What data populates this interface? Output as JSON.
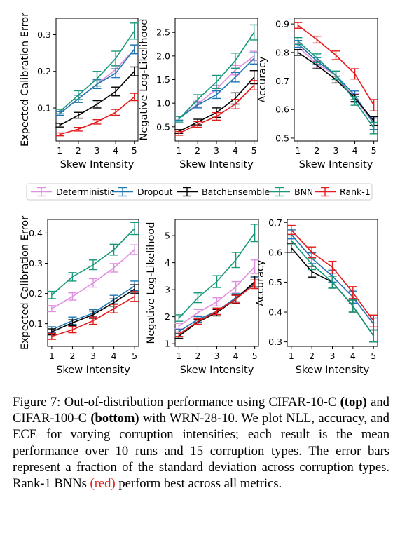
{
  "colors": {
    "Deterministic": "#e08ee0",
    "Dropout": "#1f77b4",
    "BatchEnsemble": "#000000",
    "BNN": "#17987a",
    "Rank-1": "#e41a1c"
  },
  "legend": [
    "Deterministic",
    "Dropout",
    "BatchEnsemble",
    "BNN",
    "Rank-1"
  ],
  "caption": {
    "label": "Figure 7:",
    "text1": "Out-of-distribution performance using CIFAR-10-C",
    "top": "(top)",
    "text2": "and CIFAR-100-C",
    "bottom": "(bottom)",
    "text3": "with WRN-28-10. We plot NLL, accuracy, and ECE for varying corruption intensities; each result is the mean performance over 10 runs and 15 corruption types. The error bars represent a fraction of the standard deviation across corruption types. Rank-1 BNNs",
    "red": "(red)",
    "text4": "perform best across all metrics."
  },
  "chart_data": [
    {
      "type": "line",
      "xlabel": "Skew Intensity",
      "ylabel": "Expected Calibration Error",
      "x": [
        1,
        2,
        3,
        4,
        5
      ],
      "xticks": [
        "1",
        "2",
        "3",
        "4",
        "5"
      ],
      "ylim": [
        0.01,
        0.345
      ],
      "yticks": [
        0.1,
        0.2,
        0.3
      ],
      "ytick_labels": [
        "0.1",
        "0.2",
        "0.3"
      ],
      "series": [
        {
          "name": "Deterministic",
          "values": [
            0.085,
            0.125,
            0.165,
            0.205,
            0.26
          ],
          "err": [
            0.005,
            0.01,
            0.012,
            0.012,
            0.012
          ]
        },
        {
          "name": "Dropout",
          "values": [
            0.085,
            0.125,
            0.165,
            0.195,
            0.26
          ],
          "err": [
            0.005,
            0.01,
            0.012,
            0.012,
            0.012
          ]
        },
        {
          "name": "BatchEnsemble",
          "values": [
            0.053,
            0.08,
            0.11,
            0.145,
            0.2
          ],
          "err": [
            0.005,
            0.008,
            0.01,
            0.012,
            0.012
          ]
        },
        {
          "name": "BNN",
          "values": [
            0.09,
            0.135,
            0.18,
            0.235,
            0.31
          ],
          "err": [
            0.006,
            0.012,
            0.02,
            0.02,
            0.022
          ]
        },
        {
          "name": "Rank-1",
          "values": [
            0.028,
            0.042,
            0.062,
            0.088,
            0.13
          ],
          "err": [
            0.004,
            0.005,
            0.006,
            0.008,
            0.01
          ]
        }
      ]
    },
    {
      "type": "line",
      "xlabel": "Skew Intensity",
      "ylabel": "Negative Log-Likelihood",
      "x": [
        1,
        2,
        3,
        4,
        5
      ],
      "xticks": [
        "1",
        "2",
        "3",
        "4",
        "5"
      ],
      "ylim": [
        0.2,
        2.8
      ],
      "yticks": [
        0.5,
        1.0,
        1.5,
        2.0,
        2.5
      ],
      "ytick_labels": [
        "0.5",
        "1.0",
        "1.5",
        "2.0",
        "2.5"
      ],
      "series": [
        {
          "name": "Deterministic",
          "values": [
            0.68,
            0.98,
            1.3,
            1.7,
            2.0
          ],
          "err": [
            0.04,
            0.06,
            0.08,
            0.1,
            0.1
          ]
        },
        {
          "name": "Dropout",
          "values": [
            0.68,
            0.96,
            1.18,
            1.55,
            1.95
          ],
          "err": [
            0.04,
            0.06,
            0.08,
            0.1,
            0.12
          ]
        },
        {
          "name": "BatchEnsemble",
          "values": [
            0.4,
            0.6,
            0.8,
            1.1,
            1.55
          ],
          "err": [
            0.04,
            0.06,
            0.1,
            0.12,
            0.14
          ]
        },
        {
          "name": "BNN",
          "values": [
            0.66,
            1.08,
            1.45,
            1.9,
            2.5
          ],
          "err": [
            0.06,
            0.1,
            0.14,
            0.16,
            0.16
          ]
        },
        {
          "name": "Rank-1",
          "values": [
            0.36,
            0.55,
            0.72,
            0.98,
            1.38
          ],
          "err": [
            0.04,
            0.06,
            0.08,
            0.1,
            0.1
          ]
        }
      ]
    },
    {
      "type": "line",
      "xlabel": "Skew Intensity",
      "ylabel": "Accuracy",
      "x": [
        1,
        2,
        3,
        4,
        5
      ],
      "xticks": [
        "1",
        "2",
        "3",
        "4",
        "5"
      ],
      "ylim": [
        0.49,
        0.92
      ],
      "yticks": [
        0.5,
        0.6,
        0.7,
        0.8,
        0.9
      ],
      "ytick_labels": [
        "0.5",
        "0.6",
        "0.7",
        "0.8",
        "0.9"
      ],
      "series": [
        {
          "name": "Deterministic",
          "values": [
            0.82,
            0.76,
            0.72,
            0.64,
            0.55
          ],
          "err": [
            0.01,
            0.012,
            0.014,
            0.015,
            0.02
          ]
        },
        {
          "name": "Dropout",
          "values": [
            0.83,
            0.77,
            0.72,
            0.65,
            0.55
          ],
          "err": [
            0.012,
            0.012,
            0.014,
            0.015,
            0.02
          ]
        },
        {
          "name": "BatchEnsemble",
          "values": [
            0.8,
            0.755,
            0.705,
            0.64,
            0.56
          ],
          "err": [
            0.01,
            0.012,
            0.012,
            0.012,
            0.015
          ]
        },
        {
          "name": "BNN",
          "values": [
            0.84,
            0.78,
            0.72,
            0.63,
            0.535
          ],
          "err": [
            0.012,
            0.015,
            0.015,
            0.015,
            0.02
          ]
        },
        {
          "name": "Rank-1",
          "values": [
            0.895,
            0.845,
            0.79,
            0.725,
            0.615
          ],
          "err": [
            0.01,
            0.012,
            0.015,
            0.018,
            0.02
          ]
        }
      ]
    },
    {
      "type": "line",
      "xlabel": "Skew Intensity",
      "ylabel": "Expected Calibration Error",
      "x": [
        1,
        2,
        3,
        4,
        5
      ],
      "xticks": [
        "1",
        "2",
        "3",
        "4",
        "5"
      ],
      "ylim": [
        0.025,
        0.445
      ],
      "yticks": [
        0.1,
        0.2,
        0.3,
        0.4
      ],
      "ytick_labels": [
        "0.1",
        "0.2",
        "0.3",
        "0.4"
      ],
      "series": [
        {
          "name": "Deterministic",
          "values": [
            0.15,
            0.19,
            0.235,
            0.285,
            0.345
          ],
          "err": [
            0.01,
            0.012,
            0.014,
            0.014,
            0.016
          ]
        },
        {
          "name": "Dropout",
          "values": [
            0.08,
            0.11,
            0.135,
            0.18,
            0.225
          ],
          "err": [
            0.01,
            0.012,
            0.012,
            0.014,
            0.016
          ]
        },
        {
          "name": "BatchEnsemble",
          "values": [
            0.073,
            0.103,
            0.13,
            0.17,
            0.215
          ],
          "err": [
            0.01,
            0.01,
            0.012,
            0.012,
            0.014
          ]
        },
        {
          "name": "BNN",
          "values": [
            0.195,
            0.255,
            0.295,
            0.345,
            0.415
          ],
          "err": [
            0.012,
            0.014,
            0.016,
            0.018,
            0.02
          ]
        },
        {
          "name": "Rank-1",
          "values": [
            0.058,
            0.08,
            0.11,
            0.15,
            0.19
          ],
          "err": [
            0.01,
            0.01,
            0.012,
            0.014,
            0.016
          ]
        }
      ]
    },
    {
      "type": "line",
      "xlabel": "Skew Intensity",
      "ylabel": "Negative Log-Likelihood",
      "x": [
        1,
        2,
        3,
        4,
        5
      ],
      "xticks": [
        "1",
        "2",
        "3",
        "4",
        "5"
      ],
      "ylim": [
        0.9,
        5.6
      ],
      "yticks": [
        1,
        2,
        3,
        4,
        5
      ],
      "ytick_labels": [
        "1",
        "2",
        "3",
        "4",
        "5"
      ],
      "series": [
        {
          "name": "Deterministic",
          "values": [
            1.65,
            2.15,
            2.55,
            3.1,
            3.85
          ],
          "err": [
            0.1,
            0.12,
            0.15,
            0.2,
            0.25
          ]
        },
        {
          "name": "Dropout",
          "values": [
            1.45,
            1.9,
            2.2,
            2.7,
            3.25
          ],
          "err": [
            0.08,
            0.1,
            0.12,
            0.15,
            0.2
          ]
        },
        {
          "name": "BatchEnsemble",
          "values": [
            1.28,
            1.8,
            2.15,
            2.65,
            3.3
          ],
          "err": [
            0.08,
            0.1,
            0.12,
            0.15,
            0.2
          ]
        },
        {
          "name": "BNN",
          "values": [
            1.95,
            2.7,
            3.3,
            4.1,
            5.1
          ],
          "err": [
            0.12,
            0.18,
            0.22,
            0.28,
            0.32
          ]
        },
        {
          "name": "Rank-1",
          "values": [
            1.35,
            1.82,
            2.2,
            2.65,
            3.2
          ],
          "err": [
            0.08,
            0.1,
            0.12,
            0.14,
            0.16
          ]
        }
      ]
    },
    {
      "type": "line",
      "xlabel": "Skew Intensity",
      "ylabel": "Accuracy",
      "x": [
        1,
        2,
        3,
        4,
        5
      ],
      "xticks": [
        "1",
        "2",
        "3",
        "4",
        "5"
      ],
      "ylim": [
        0.285,
        0.71
      ],
      "yticks": [
        0.3,
        0.4,
        0.5,
        0.6,
        0.7
      ],
      "ytick_labels": [
        "0.3",
        "0.4",
        "0.5",
        "0.6",
        "0.7"
      ],
      "series": [
        {
          "name": "Deterministic",
          "values": [
            0.66,
            0.58,
            0.52,
            0.45,
            0.36
          ],
          "err": [
            0.015,
            0.018,
            0.02,
            0.02,
            0.02
          ]
        },
        {
          "name": "Dropout",
          "values": [
            0.66,
            0.58,
            0.52,
            0.45,
            0.36
          ],
          "err": [
            0.015,
            0.018,
            0.02,
            0.02,
            0.02
          ]
        },
        {
          "name": "BatchEnsemble",
          "values": [
            0.615,
            0.535,
            0.5,
            0.42,
            0.32
          ],
          "err": [
            0.015,
            0.018,
            0.02,
            0.02,
            0.02
          ]
        },
        {
          "name": "BNN",
          "values": [
            0.64,
            0.56,
            0.5,
            0.42,
            0.32
          ],
          "err": [
            0.015,
            0.018,
            0.02,
            0.02,
            0.02
          ]
        },
        {
          "name": "Rank-1",
          "values": [
            0.675,
            0.6,
            0.55,
            0.465,
            0.37
          ],
          "err": [
            0.015,
            0.018,
            0.02,
            0.02,
            0.02
          ]
        }
      ]
    }
  ]
}
